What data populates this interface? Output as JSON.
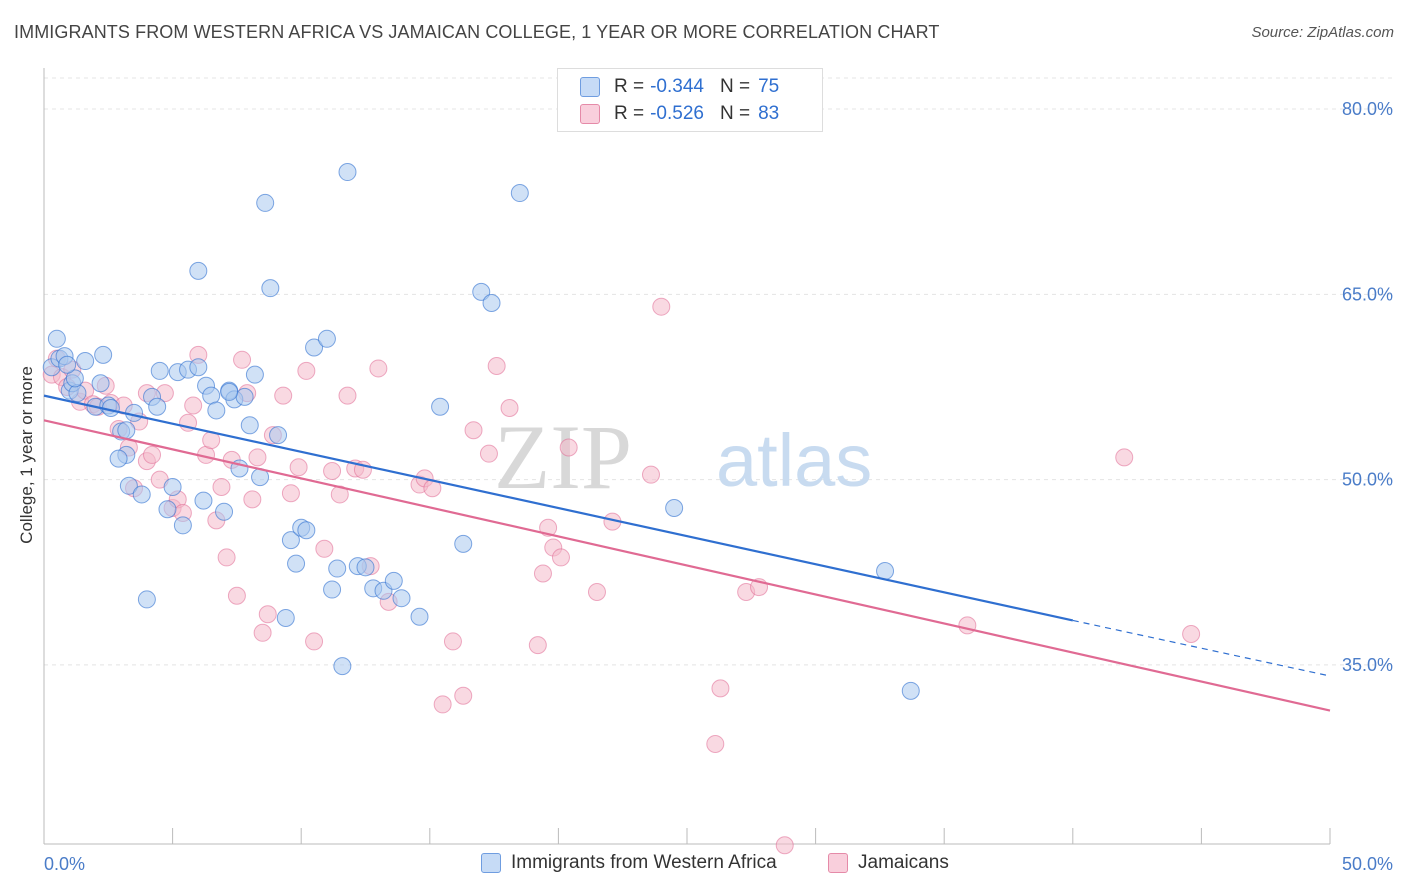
{
  "title": "IMMIGRANTS FROM WESTERN AFRICA VS JAMAICAN COLLEGE, 1 YEAR OR MORE CORRELATION CHART",
  "source": "Source: ZipAtlas.com",
  "watermark": {
    "part1": "ZIP",
    "part2": "atlas"
  },
  "colors": {
    "blue": "#2f6fd0",
    "blue_fill": "#aac8ee",
    "pink": "#e06a93",
    "pink_fill": "#f4b9cb",
    "grid": "#e4e4e4",
    "tick_text": "#4a7cc8"
  },
  "legend": {
    "items": [
      {
        "r_label": "R =",
        "r_value": "-0.344",
        "n_label": "N =",
        "n_value": "75"
      },
      {
        "r_label": "R =",
        "r_value": "-0.526",
        "n_label": "N =",
        "n_value": "83"
      }
    ]
  },
  "bottom_legend": [
    "Immigrants from Western Africa",
    "Jamaicans"
  ],
  "chart_data": {
    "type": "scatter",
    "title": "IMMIGRANTS FROM WESTERN AFRICA VS JAMAICAN COLLEGE, 1 YEAR OR MORE CORRELATION CHART",
    "xlabel": "",
    "ylabel": "College, 1 year or more",
    "xlim": [
      0,
      50
    ],
    "ylim": [
      20.5,
      83
    ],
    "x_tick_labels": [
      "0.0%",
      "50.0%"
    ],
    "y_ticks": [
      35,
      50,
      65,
      80
    ],
    "y_tick_labels": [
      "35.0%",
      "50.0%",
      "65.0%",
      "80.0%"
    ],
    "grid": true,
    "legend_position": "top-center",
    "series": [
      {
        "name": "Immigrants from Western Africa",
        "r": -0.344,
        "n": 75,
        "trend": {
          "x0": 0,
          "y0": 56.8,
          "x1": 40,
          "y1": 38.6,
          "dashed_to_x": 50,
          "dashed_to_y": 34.1
        },
        "points": [
          [
            0.3,
            59.1
          ],
          [
            0.5,
            61.4
          ],
          [
            0.6,
            59.8
          ],
          [
            0.8,
            60.0
          ],
          [
            1.0,
            57.2
          ],
          [
            1.1,
            57.8
          ],
          [
            1.3,
            57.0
          ],
          [
            1.6,
            59.6
          ],
          [
            2.0,
            55.9
          ],
          [
            2.3,
            60.1
          ],
          [
            2.5,
            56.0
          ],
          [
            3.0,
            53.9
          ],
          [
            3.2,
            52.0
          ],
          [
            3.5,
            55.4
          ],
          [
            3.2,
            54.0
          ],
          [
            2.9,
            51.7
          ],
          [
            3.3,
            49.5
          ],
          [
            3.8,
            48.8
          ],
          [
            4.2,
            56.7
          ],
          [
            4.4,
            55.9
          ],
          [
            4.5,
            58.8
          ],
          [
            4.8,
            47.6
          ],
          [
            5.0,
            49.4
          ],
          [
            5.2,
            58.7
          ],
          [
            5.4,
            46.3
          ],
          [
            5.6,
            58.9
          ],
          [
            6.0,
            59.1
          ],
          [
            6.2,
            48.3
          ],
          [
            6.3,
            57.6
          ],
          [
            6.5,
            56.8
          ],
          [
            6.7,
            55.6
          ],
          [
            7.0,
            47.4
          ],
          [
            7.2,
            57.2
          ],
          [
            7.4,
            56.5
          ],
          [
            7.6,
            50.9
          ],
          [
            7.8,
            56.7
          ],
          [
            8.0,
            54.4
          ],
          [
            8.2,
            58.5
          ],
          [
            8.4,
            50.2
          ],
          [
            8.6,
            72.4
          ],
          [
            8.8,
            65.5
          ],
          [
            9.1,
            53.6
          ],
          [
            9.4,
            38.8
          ],
          [
            9.6,
            45.1
          ],
          [
            9.8,
            43.2
          ],
          [
            10.0,
            46.1
          ],
          [
            10.2,
            45.9
          ],
          [
            10.5,
            60.7
          ],
          [
            11.0,
            61.4
          ],
          [
            11.2,
            41.1
          ],
          [
            11.4,
            42.8
          ],
          [
            11.6,
            34.9
          ],
          [
            11.8,
            74.9
          ],
          [
            12.2,
            43.0
          ],
          [
            12.5,
            42.9
          ],
          [
            12.8,
            41.2
          ],
          [
            13.2,
            41.0
          ],
          [
            13.6,
            41.8
          ],
          [
            13.9,
            40.4
          ],
          [
            14.6,
            38.9
          ],
          [
            15.4,
            55.9
          ],
          [
            16.3,
            44.8
          ],
          [
            17.0,
            65.2
          ],
          [
            17.4,
            64.3
          ],
          [
            18.5,
            73.2
          ],
          [
            24.5,
            47.7
          ],
          [
            32.7,
            42.6
          ],
          [
            33.7,
            32.9
          ],
          [
            6.0,
            66.9
          ],
          [
            4.0,
            40.3
          ],
          [
            2.2,
            57.8
          ],
          [
            1.2,
            58.2
          ],
          [
            0.9,
            59.3
          ],
          [
            7.2,
            57.1
          ],
          [
            2.6,
            55.8
          ]
        ]
      },
      {
        "name": "Jamaicans",
        "r": -0.526,
        "n": 83,
        "trend": {
          "x0": 0,
          "y0": 54.8,
          "x1": 50,
          "y1": 31.3
        },
        "points": [
          [
            0.3,
            58.5
          ],
          [
            0.5,
            59.8
          ],
          [
            0.7,
            58.3
          ],
          [
            0.9,
            57.5
          ],
          [
            1.1,
            58.9
          ],
          [
            1.4,
            56.3
          ],
          [
            1.6,
            57.2
          ],
          [
            1.9,
            56.1
          ],
          [
            2.1,
            55.9
          ],
          [
            2.4,
            57.6
          ],
          [
            2.6,
            56.2
          ],
          [
            2.9,
            54.1
          ],
          [
            3.1,
            56.0
          ],
          [
            3.3,
            52.6
          ],
          [
            3.5,
            49.3
          ],
          [
            3.7,
            54.7
          ],
          [
            4.0,
            51.5
          ],
          [
            4.2,
            52.0
          ],
          [
            4.5,
            50.0
          ],
          [
            4.7,
            57.0
          ],
          [
            5.0,
            47.7
          ],
          [
            5.2,
            48.4
          ],
          [
            5.4,
            47.3
          ],
          [
            5.6,
            54.6
          ],
          [
            5.8,
            56.0
          ],
          [
            6.0,
            60.1
          ],
          [
            6.3,
            52.0
          ],
          [
            6.5,
            53.2
          ],
          [
            6.7,
            46.7
          ],
          [
            6.9,
            49.4
          ],
          [
            7.1,
            43.7
          ],
          [
            7.3,
            51.6
          ],
          [
            7.5,
            40.6
          ],
          [
            7.7,
            59.7
          ],
          [
            7.9,
            57.0
          ],
          [
            8.1,
            48.4
          ],
          [
            8.3,
            51.8
          ],
          [
            8.5,
            37.6
          ],
          [
            8.7,
            39.1
          ],
          [
            8.9,
            53.6
          ],
          [
            9.3,
            56.8
          ],
          [
            9.6,
            48.9
          ],
          [
            9.9,
            51.0
          ],
          [
            10.2,
            58.8
          ],
          [
            10.5,
            36.9
          ],
          [
            10.9,
            44.4
          ],
          [
            11.2,
            50.7
          ],
          [
            11.5,
            48.8
          ],
          [
            11.8,
            56.8
          ],
          [
            12.1,
            50.9
          ],
          [
            12.4,
            50.8
          ],
          [
            12.7,
            43.0
          ],
          [
            13.0,
            59.0
          ],
          [
            13.4,
            40.1
          ],
          [
            14.6,
            49.6
          ],
          [
            14.8,
            50.1
          ],
          [
            15.1,
            49.3
          ],
          [
            15.5,
            31.8
          ],
          [
            15.9,
            36.9
          ],
          [
            16.3,
            32.5
          ],
          [
            16.7,
            54.0
          ],
          [
            17.3,
            52.1
          ],
          [
            17.6,
            59.2
          ],
          [
            18.1,
            55.8
          ],
          [
            19.2,
            36.6
          ],
          [
            19.4,
            42.4
          ],
          [
            19.6,
            46.1
          ],
          [
            19.8,
            44.5
          ],
          [
            20.1,
            43.7
          ],
          [
            20.4,
            52.6
          ],
          [
            21.5,
            40.9
          ],
          [
            22.1,
            46.6
          ],
          [
            23.6,
            50.4
          ],
          [
            24.0,
            64.0
          ],
          [
            26.3,
            33.1
          ],
          [
            26.1,
            28.6
          ],
          [
            27.3,
            40.9
          ],
          [
            27.8,
            41.3
          ],
          [
            28.8,
            20.4
          ],
          [
            35.9,
            38.2
          ],
          [
            42.0,
            51.8
          ],
          [
            44.6,
            37.5
          ],
          [
            4.0,
            57.0
          ]
        ]
      }
    ]
  }
}
